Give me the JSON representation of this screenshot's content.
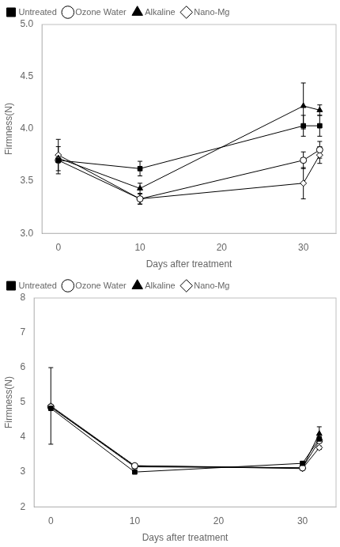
{
  "chart_data": [
    {
      "type": "line",
      "x_label": "Days after treatment",
      "y_label": "Firmness(N)",
      "x": [
        0,
        10,
        30,
        32
      ],
      "xlim": [
        -2,
        34
      ],
      "xticks": [
        0,
        10,
        20,
        30
      ],
      "ylim": [
        3.0,
        5.0
      ],
      "yticks": [
        {
          "value": 3.0,
          "label": "3.0"
        },
        3.5,
        {
          "value": 4.0,
          "label": "4.0"
        },
        4.5,
        {
          "value": 5.0,
          "label": "5.0"
        }
      ],
      "grid": false,
      "legend": "upper left",
      "series": [
        {
          "name": "Untreated",
          "color": "black",
          "marker": "square",
          "values": [
            3.7,
            3.62,
            4.03,
            4.03
          ],
          "errors": [
            0.13,
            0.07,
            0.1,
            0.1
          ]
        },
        {
          "name": "Ozone Water",
          "color": "black",
          "marker": "circle_open",
          "values": [
            3.7,
            3.33,
            3.7,
            3.8
          ],
          "errors": [
            0.0,
            0.05,
            0.08,
            0.08
          ]
        },
        {
          "name": "Alkaline",
          "color": "black",
          "marker": "triangle",
          "values": [
            3.72,
            3.43,
            4.22,
            4.18
          ],
          "errors": [
            0.0,
            0.05,
            0.22,
            0.05
          ]
        },
        {
          "name": "Nano-Mg",
          "color": "black",
          "marker": "diamond_open",
          "values": [
            3.75,
            3.33,
            3.48,
            3.75
          ],
          "errors": [
            0.15,
            0.05,
            0.15,
            0.08
          ]
        }
      ]
    },
    {
      "type": "line",
      "x_label": "Days after treatment",
      "y_label": "Firmness(N)",
      "x": [
        0,
        10,
        30,
        32
      ],
      "xlim": [
        -2,
        34
      ],
      "xticks": [
        0,
        10,
        20,
        30
      ],
      "ylim": [
        2.0,
        8.0
      ],
      "yticks": [
        2,
        3,
        4,
        5,
        6,
        7,
        8
      ],
      "grid": false,
      "legend": "upper left",
      "series": [
        {
          "name": "Untreated",
          "color": "black",
          "marker": "square",
          "values": [
            4.83,
            3.0,
            3.25,
            3.95
          ],
          "errors": [
            0.0,
            0.05,
            0.05,
            0.1
          ]
        },
        {
          "name": "Ozone Water",
          "color": "black",
          "marker": "circle_open",
          "values": [
            4.87,
            3.18,
            3.12,
            3.9
          ],
          "errors": [
            0.0,
            0.05,
            0.05,
            0.05
          ]
        },
        {
          "name": "Alkaline",
          "color": "black",
          "marker": "triangle",
          "values": [
            4.87,
            3.15,
            3.12,
            4.1
          ],
          "errors": [
            0.0,
            0.05,
            0.05,
            0.2
          ]
        },
        {
          "name": "Nano-Mg",
          "color": "black",
          "marker": "diamond_open",
          "values": [
            4.9,
            3.18,
            3.1,
            3.7
          ],
          "errors": [
            1.1,
            0.05,
            0.05,
            0.05
          ]
        }
      ]
    }
  ]
}
